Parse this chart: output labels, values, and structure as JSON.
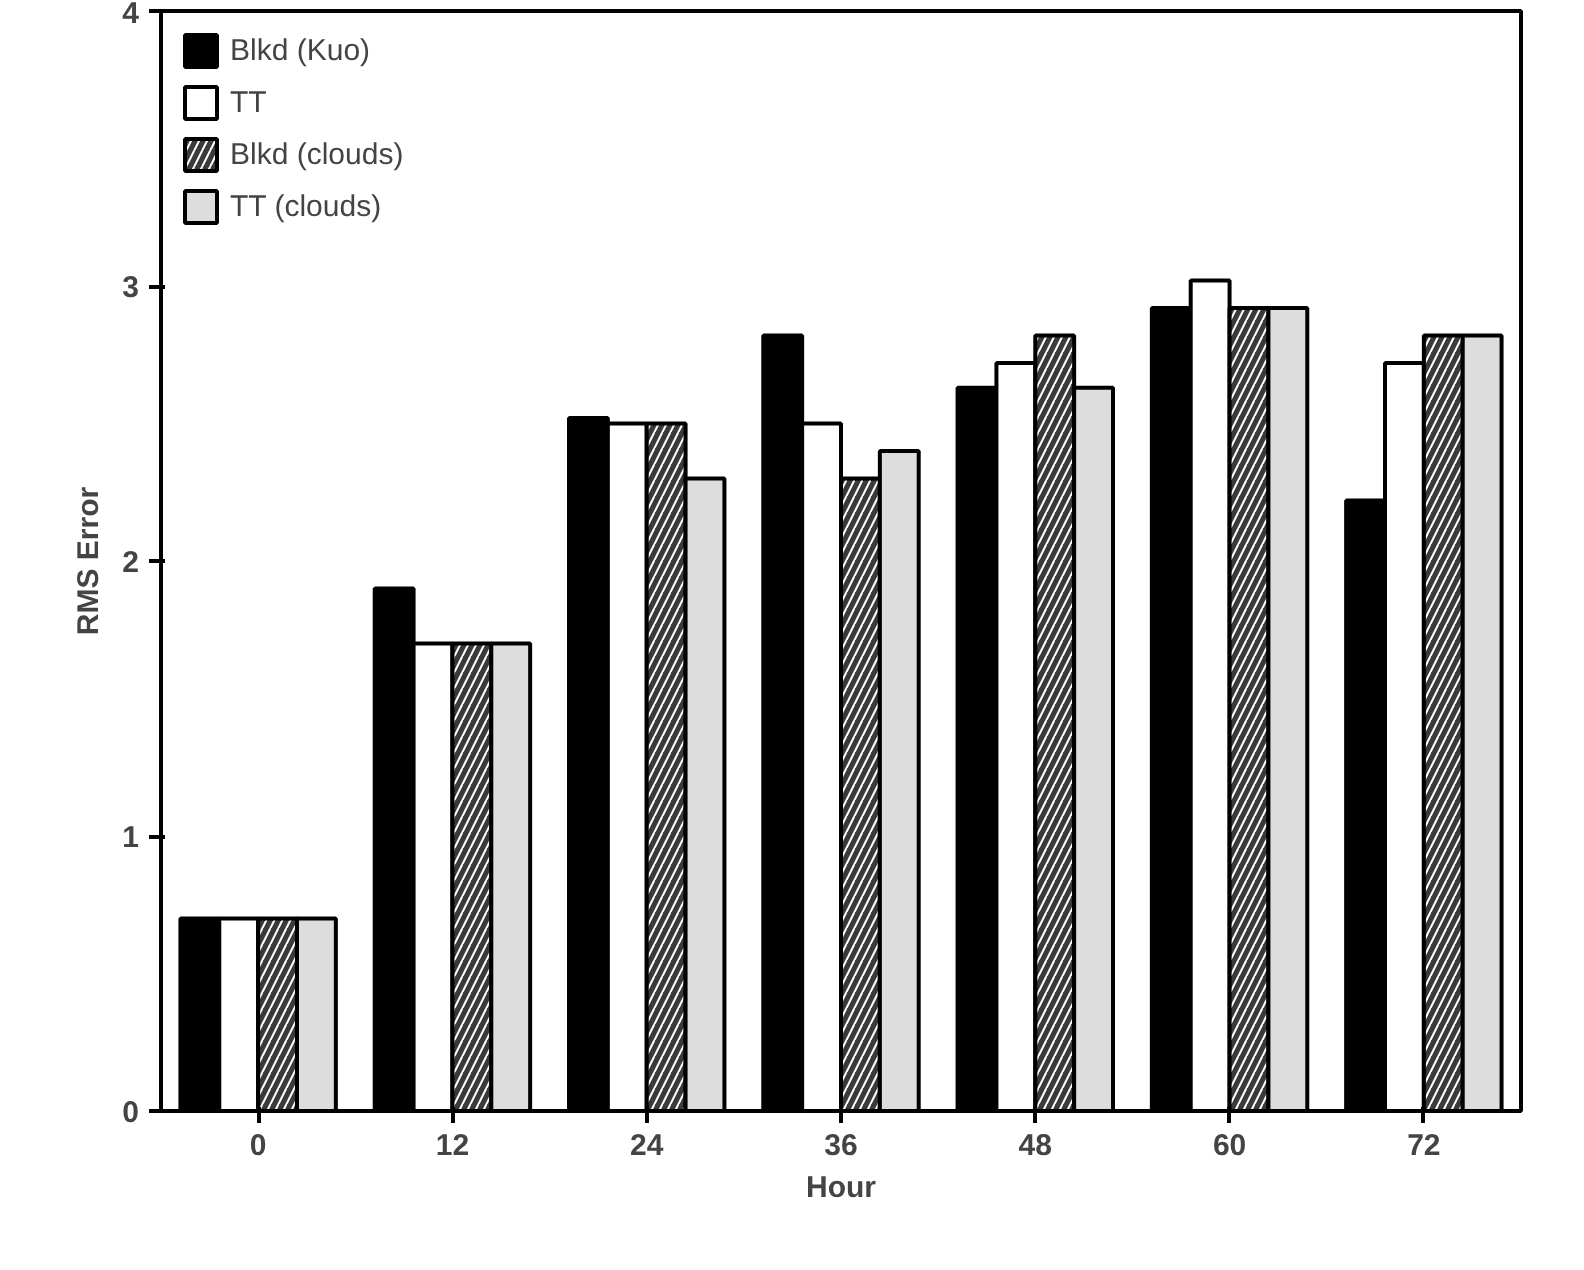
{
  "chart_data": {
    "type": "bar",
    "xlabel": "Hour",
    "ylabel": "RMS Error",
    "categories": [
      "0",
      "12",
      "24",
      "36",
      "48",
      "60",
      "72"
    ],
    "ylim": [
      0,
      4
    ],
    "yticks": [
      0,
      1,
      2,
      3,
      4
    ],
    "grid": false,
    "legend": "top left",
    "series": [
      {
        "name": "Blkd (Kuo)",
        "color": "#000000",
        "values": [
          0.7,
          1.9,
          2.52,
          2.82,
          2.63,
          2.92,
          2.22
        ]
      },
      {
        "name": "TT",
        "color": "#ffffff",
        "values": [
          0.7,
          1.7,
          2.5,
          2.5,
          2.72,
          3.02,
          2.72
        ]
      },
      {
        "name": "Blkd (clouds)",
        "color": "#3a3a3a",
        "values": [
          0.7,
          1.7,
          2.5,
          2.3,
          2.82,
          2.92,
          2.82
        ]
      },
      {
        "name": "TT (clouds)",
        "color": "#dddddd",
        "values": [
          0.7,
          1.7,
          2.3,
          2.4,
          2.63,
          2.92,
          2.82
        ]
      }
    ]
  }
}
